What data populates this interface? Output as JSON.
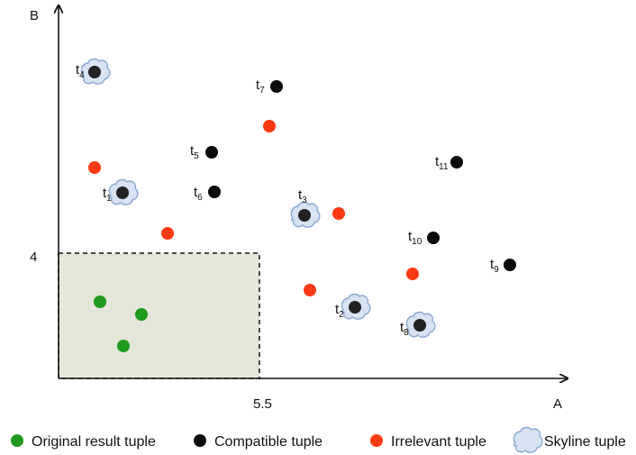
{
  "axes": {
    "x_label": "A",
    "y_label": "B",
    "x_tick": "5.5",
    "y_tick": "4"
  },
  "colors": {
    "original": "#1f9a1f",
    "compatible": "#0a0a0a",
    "irrelevant": "#ff3a14",
    "skyline_cloud_fill": "#d7e2f3",
    "skyline_cloud_stroke": "#8aa7cf",
    "region_fill": "#e3e6d8"
  },
  "tuples": [
    {
      "name": "t",
      "sub": "1"
    },
    {
      "name": "t",
      "sub": "2"
    },
    {
      "name": "t",
      "sub": "3"
    },
    {
      "name": "t",
      "sub": "4"
    },
    {
      "name": "t",
      "sub": "5"
    },
    {
      "name": "t",
      "sub": "6"
    },
    {
      "name": "t",
      "sub": "7"
    },
    {
      "name": "t",
      "sub": "8"
    },
    {
      "name": "t",
      "sub": "9"
    },
    {
      "name": "t",
      "sub": "10"
    },
    {
      "name": "t",
      "sub": "11"
    }
  ],
  "legend": {
    "original": "Original result tuple",
    "compatible": "Compatible tuple",
    "irrelevant": "Irrelevant tuple",
    "skyline": "Skyline tuple"
  }
}
